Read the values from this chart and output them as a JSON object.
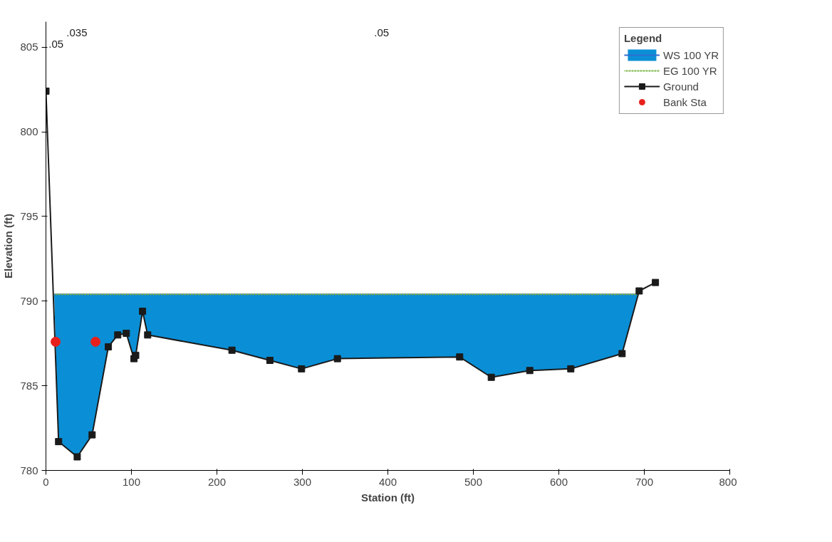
{
  "chart_data": {
    "type": "line",
    "xlabel": "Station (ft)",
    "ylabel": "Elevation (ft)",
    "legend_title": "Legend",
    "xlim": [
      0,
      800
    ],
    "ylim": [
      780,
      806.5
    ],
    "xticks": [
      0,
      100,
      200,
      300,
      400,
      500,
      600,
      700,
      800
    ],
    "yticks": [
      780,
      785,
      790,
      795,
      800,
      805
    ],
    "grid": false,
    "legend": "top right",
    "annotations": [
      ".05",
      ".035",
      ".05"
    ],
    "series": [
      {
        "name": "WS 100 YR",
        "type": "line",
        "color": "#2f6fd0",
        "x": [
          9.6,
          14.8,
          36.6,
          54,
          73,
          84,
          94,
          103,
          105,
          113,
          119,
          217.6,
          262,
          299,
          341,
          484,
          521,
          566,
          614,
          674,
          692.6
        ],
        "values": [
          790.4,
          790.4,
          790.4,
          790.4,
          790.4,
          790.4,
          790.4,
          790.4,
          790.4,
          790.4,
          790.4,
          790.4,
          790.4,
          790.4,
          790.4,
          790.4,
          790.4,
          790.4,
          790.4,
          790.4,
          790.4
        ],
        "lower": [
          790.4,
          781.7,
          780.8,
          782.1,
          787.3,
          788.0,
          788.1,
          786.6,
          786.8,
          789.4,
          788.0,
          787.1,
          786.5,
          786.0,
          786.6,
          786.7,
          785.5,
          785.9,
          786.0,
          786.9,
          790.4
        ],
        "upper": [
          790.4,
          790.4,
          790.4,
          790.4,
          790.4,
          790.4,
          790.4,
          790.4,
          790.4,
          790.4,
          790.4,
          790.4,
          790.4,
          790.4,
          790.4,
          790.4,
          790.4,
          790.4,
          790.4,
          790.4,
          790.4
        ]
      },
      {
        "name": "EG 100 YR",
        "type": "line",
        "line_style": "dotted",
        "color": "#7ab648",
        "x": [
          9.6,
          692.6
        ],
        "values": [
          790.4,
          790.4
        ]
      },
      {
        "name": "Ground",
        "marker": "square",
        "color": "#1a1a1a",
        "x": [
          0,
          14.8,
          36.6,
          54,
          73,
          84,
          94,
          103,
          105,
          113,
          119,
          217.6,
          262,
          299,
          341,
          484,
          521,
          566,
          614,
          674,
          694,
          713
        ],
        "values": [
          802.4,
          781.7,
          780.8,
          782.1,
          787.3,
          788.0,
          788.1,
          786.6,
          786.8,
          789.4,
          788.0,
          787.1,
          786.5,
          786.0,
          786.6,
          786.7,
          785.5,
          785.9,
          786.0,
          786.9,
          790.6,
          791.1
        ]
      },
      {
        "name": "Bank Sta",
        "type": "scatter",
        "marker": "circle",
        "color": "#e8201c",
        "x": [
          11.3,
          58
        ],
        "values": [
          787.6,
          787.6
        ]
      }
    ]
  }
}
